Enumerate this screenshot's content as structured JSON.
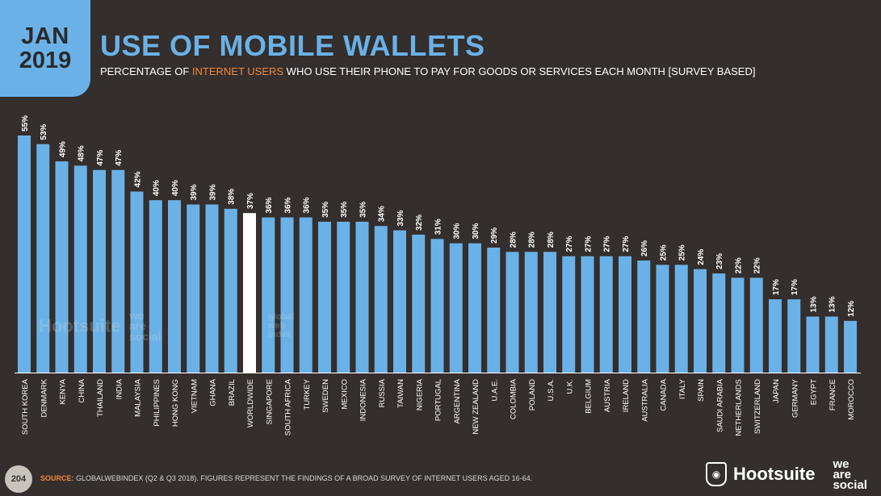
{
  "header": {
    "month": "JAN",
    "year": "2019",
    "title": "USE OF MOBILE WALLETS",
    "subtitle_pre": "PERCENTAGE OF ",
    "subtitle_highlight": "INTERNET USERS",
    "subtitle_post": " WHO USE THEIR PHONE TO PAY FOR GOODS OR SERVICES EACH MONTH [SURVEY BASED]"
  },
  "colors": {
    "background": "#342e2c",
    "bar": "#6ab1e7",
    "bar_highlight": "#ffffff",
    "accent": "#f0883a"
  },
  "chart_data": {
    "type": "bar",
    "categories": [
      "SOUTH KOREA",
      "DENMARK",
      "KENYA",
      "CHINA",
      "THAILAND",
      "INDIA",
      "MALAYSIA",
      "PHILIPPINES",
      "HONG KONG",
      "VIETNAM",
      "GHANA",
      "BRAZIL",
      "WORLDWIDE",
      "SINGAPORE",
      "SOUTH AFRICA",
      "TURKEY",
      "SWEDEN",
      "MEXICO",
      "INDONESIA",
      "RUSSIA",
      "TAIWAN",
      "NIGERIA",
      "PORTUGAL",
      "ARGENTINA",
      "NEW ZEALAND",
      "U.A.E.",
      "COLOMBIA",
      "POLAND",
      "U.S.A.",
      "U.K.",
      "BELGIUM",
      "AUSTRIA",
      "IRELAND",
      "AUSTRALIA",
      "CANADA",
      "ITALY",
      "SPAIN",
      "SAUDI ARABIA",
      "NETHERLANDS",
      "SWITZERLAND",
      "JAPAN",
      "GERMANY",
      "EGYPT",
      "FRANCE",
      "MOROCCO"
    ],
    "values": [
      55,
      53,
      49,
      48,
      47,
      47,
      42,
      40,
      40,
      39,
      39,
      38,
      37,
      36,
      36,
      36,
      35,
      35,
      35,
      34,
      33,
      32,
      31,
      30,
      30,
      29,
      28,
      28,
      28,
      27,
      27,
      27,
      27,
      26,
      25,
      25,
      24,
      23,
      22,
      22,
      17,
      17,
      13,
      13,
      12
    ],
    "value_labels": [
      "55%",
      "53%",
      "49%",
      "48%",
      "47%",
      "47%",
      "42%",
      "40%",
      "40%",
      "39%",
      "39%",
      "38%",
      "37%",
      "36%",
      "36%",
      "36%",
      "35%",
      "35%",
      "35%",
      "34%",
      "33%",
      "32%",
      "31%",
      "30%",
      "30%",
      "29%",
      "28%",
      "28%",
      "28%",
      "27%",
      "27%",
      "27%",
      "27%",
      "26%",
      "25%",
      "25%",
      "24%",
      "23%",
      "22%",
      "22%",
      "17%",
      "17%",
      "13%",
      "13%",
      "12%"
    ],
    "highlight": "WORLDWIDE",
    "ylim": [
      0,
      55
    ],
    "grid": false
  },
  "watermark": {
    "brand": "Hootsuite",
    "partner_lines": [
      "we",
      "are",
      "social"
    ],
    "gwi_lines": [
      "global",
      "web",
      "index"
    ]
  },
  "footer": {
    "page": "204",
    "source_label": "SOURCE:",
    "source_text": " GLOBALWEBINDEX (Q2 & Q3 2018). FIGURES REPRESENT THE FINDINGS OF A BROAD SURVEY OF INTERNET USERS AGED 16-64.",
    "brand": "Hootsuite",
    "partner_lines": [
      "we",
      "are",
      "social"
    ]
  }
}
